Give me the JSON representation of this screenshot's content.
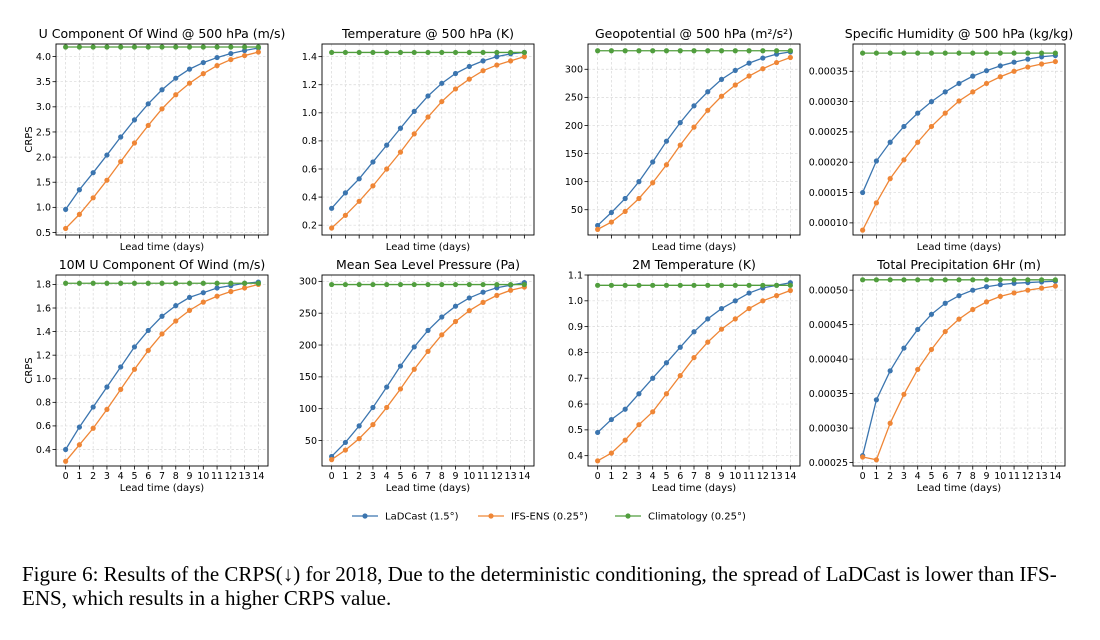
{
  "legend": {
    "entries": [
      {
        "label": "LaDCast (1.5°)",
        "color": "#3b75af"
      },
      {
        "label": "IFS-ENS (0.25°)",
        "color": "#ef8636"
      },
      {
        "label": "Climatology (0.25°)",
        "color": "#519e3e"
      }
    ]
  },
  "caption": "Figure 6: Results of the CRPS(↓) for 2018, Due to the deterministic conditioning, the spread of LaDCast is lower than IFS-ENS, which results in a higher CRPS value.",
  "chart_data": [
    {
      "type": "line",
      "title": "U Component Of Wind @ 500 hPa (m/s)",
      "xlabel": "Lead time (days)",
      "ylabel": "CRPS",
      "ylim": [
        0.45,
        4.25
      ],
      "yticks": [
        "0.5",
        "1.0",
        "1.5",
        "2.0",
        "2.5",
        "3.0",
        "3.5",
        "4.0"
      ],
      "ytick_values": [
        0.5,
        1.0,
        1.5,
        2.0,
        2.5,
        3.0,
        3.5,
        4.0
      ],
      "x": [
        0,
        1,
        2,
        3,
        4,
        5,
        6,
        7,
        8,
        9,
        10,
        11,
        12,
        13,
        14
      ],
      "show_xticklabels": false,
      "series": [
        {
          "name": "LaDCast (1.5°)",
          "values": [
            0.96,
            1.35,
            1.69,
            2.04,
            2.4,
            2.74,
            3.06,
            3.34,
            3.57,
            3.75,
            3.88,
            3.98,
            4.06,
            4.12,
            4.17
          ]
        },
        {
          "name": "IFS-ENS (0.25°)",
          "values": [
            0.58,
            0.86,
            1.19,
            1.54,
            1.91,
            2.28,
            2.63,
            2.96,
            3.24,
            3.47,
            3.66,
            3.82,
            3.94,
            4.02,
            4.09
          ]
        },
        {
          "name": "Climatology (0.25°)",
          "values": [
            4.19,
            4.19,
            4.19,
            4.19,
            4.19,
            4.19,
            4.19,
            4.19,
            4.19,
            4.19,
            4.19,
            4.19,
            4.19,
            4.19,
            4.19
          ]
        }
      ]
    },
    {
      "type": "line",
      "title": "Temperature @ 500 hPa (K)",
      "xlabel": "Lead time (days)",
      "ylabel": "",
      "ylim": [
        0.13,
        1.49
      ],
      "yticks": [
        "0.2",
        "0.4",
        "0.6",
        "0.8",
        "1.0",
        "1.2",
        "1.4"
      ],
      "ytick_values": [
        0.2,
        0.4,
        0.6,
        0.8,
        1.0,
        1.2,
        1.4
      ],
      "x": [
        0,
        1,
        2,
        3,
        4,
        5,
        6,
        7,
        8,
        9,
        10,
        11,
        12,
        13,
        14
      ],
      "show_xticklabels": false,
      "series": [
        {
          "name": "LaDCast (1.5°)",
          "values": [
            0.32,
            0.43,
            0.53,
            0.65,
            0.77,
            0.89,
            1.01,
            1.12,
            1.21,
            1.28,
            1.33,
            1.37,
            1.4,
            1.42,
            1.43
          ]
        },
        {
          "name": "IFS-ENS (0.25°)",
          "values": [
            0.18,
            0.27,
            0.37,
            0.48,
            0.6,
            0.72,
            0.85,
            0.97,
            1.08,
            1.17,
            1.24,
            1.3,
            1.34,
            1.37,
            1.4
          ]
        },
        {
          "name": "Climatology (0.25°)",
          "values": [
            1.43,
            1.43,
            1.43,
            1.43,
            1.43,
            1.43,
            1.43,
            1.43,
            1.43,
            1.43,
            1.43,
            1.43,
            1.43,
            1.43,
            1.43
          ]
        }
      ]
    },
    {
      "type": "line",
      "title": "Geopotential @ 500 hPa (m²/s²)",
      "xlabel": "Lead time (days)",
      "ylabel": "",
      "ylim": [
        5,
        345
      ],
      "yticks": [
        "50",
        "100",
        "150",
        "200",
        "250",
        "300"
      ],
      "ytick_values": [
        50,
        100,
        150,
        200,
        250,
        300
      ],
      "x": [
        0,
        1,
        2,
        3,
        4,
        5,
        6,
        7,
        8,
        9,
        10,
        11,
        12,
        13,
        14
      ],
      "show_xticklabels": false,
      "series": [
        {
          "name": "LaDCast (1.5°)",
          "values": [
            22,
            45,
            70,
            100,
            135,
            172,
            205,
            235,
            260,
            282,
            298,
            311,
            320,
            327,
            331
          ]
        },
        {
          "name": "IFS-ENS (0.25°)",
          "values": [
            15,
            28,
            47,
            70,
            98,
            130,
            165,
            197,
            227,
            252,
            272,
            288,
            301,
            312,
            321
          ]
        },
        {
          "name": "Climatology (0.25°)",
          "values": [
            333,
            333,
            333,
            333,
            333,
            333,
            333,
            333,
            333,
            333,
            333,
            333,
            333,
            333,
            333
          ]
        }
      ]
    },
    {
      "type": "line",
      "title": "Specific Humidity @ 500 hPa (kg/kg)",
      "xlabel": "Lead time (days)",
      "ylabel": "",
      "ylim": [
        8e-05,
        0.000395
      ],
      "yticks": [
        "0.00010",
        "0.00015",
        "0.00020",
        "0.00025",
        "0.00030",
        "0.00035"
      ],
      "ytick_values": [
        0.0001,
        0.00015,
        0.0002,
        0.00025,
        0.0003,
        0.00035
      ],
      "x": [
        0,
        1,
        2,
        3,
        4,
        5,
        6,
        7,
        8,
        9,
        10,
        11,
        12,
        13,
        14
      ],
      "show_xticklabels": false,
      "series": [
        {
          "name": "LaDCast (1.5°)",
          "values": [
            0.00015,
            0.000202,
            0.000233,
            0.000259,
            0.000281,
            0.0003,
            0.000316,
            0.00033,
            0.000342,
            0.000351,
            0.000359,
            0.000365,
            0.00037,
            0.000374,
            0.000376
          ]
        },
        {
          "name": "IFS-ENS (0.25°)",
          "values": [
            8.8e-05,
            0.000133,
            0.000173,
            0.000204,
            0.000233,
            0.000259,
            0.000281,
            0.000301,
            0.000316,
            0.00033,
            0.000341,
            0.00035,
            0.000357,
            0.000362,
            0.000366
          ]
        },
        {
          "name": "Climatology (0.25°)",
          "values": [
            0.00038,
            0.00038,
            0.00038,
            0.00038,
            0.00038,
            0.00038,
            0.00038,
            0.00038,
            0.00038,
            0.00038,
            0.00038,
            0.00038,
            0.00038,
            0.00038,
            0.00038
          ]
        }
      ]
    },
    {
      "type": "line",
      "title": "10M U Component Of Wind (m/s)",
      "xlabel": "Lead time (days)",
      "ylabel": "CRPS",
      "ylim": [
        0.26,
        1.88
      ],
      "yticks": [
        "0.4",
        "0.6",
        "0.8",
        "1.0",
        "1.2",
        "1.4",
        "1.6",
        "1.8"
      ],
      "ytick_values": [
        0.4,
        0.6,
        0.8,
        1.0,
        1.2,
        1.4,
        1.6,
        1.8
      ],
      "x": [
        0,
        1,
        2,
        3,
        4,
        5,
        6,
        7,
        8,
        9,
        10,
        11,
        12,
        13,
        14
      ],
      "xticks": [
        "0",
        "1",
        "2",
        "3",
        "4",
        "5",
        "6",
        "7",
        "8",
        "9",
        "10",
        "11",
        "12",
        "13",
        "14"
      ],
      "show_xticklabels": true,
      "series": [
        {
          "name": "LaDCast (1.5°)",
          "values": [
            0.4,
            0.59,
            0.76,
            0.93,
            1.1,
            1.27,
            1.41,
            1.53,
            1.62,
            1.69,
            1.73,
            1.77,
            1.79,
            1.81,
            1.82
          ]
        },
        {
          "name": "IFS-ENS (0.25°)",
          "values": [
            0.3,
            0.44,
            0.58,
            0.74,
            0.91,
            1.08,
            1.24,
            1.38,
            1.49,
            1.58,
            1.65,
            1.7,
            1.74,
            1.77,
            1.8
          ]
        },
        {
          "name": "Climatology (0.25°)",
          "values": [
            1.81,
            1.81,
            1.81,
            1.81,
            1.81,
            1.81,
            1.81,
            1.81,
            1.81,
            1.81,
            1.81,
            1.81,
            1.81,
            1.81,
            1.81
          ]
        }
      ]
    },
    {
      "type": "line",
      "title": "Mean Sea Level Pressure (Pa)",
      "xlabel": "Lead time (days)",
      "ylabel": "",
      "ylim": [
        10,
        310
      ],
      "yticks": [
        "50",
        "100",
        "150",
        "200",
        "250",
        "300"
      ],
      "ytick_values": [
        50,
        100,
        150,
        200,
        250,
        300
      ],
      "x": [
        0,
        1,
        2,
        3,
        4,
        5,
        6,
        7,
        8,
        9,
        10,
        11,
        12,
        13,
        14
      ],
      "xticks": [
        "0",
        "1",
        "2",
        "3",
        "4",
        "5",
        "6",
        "7",
        "8",
        "9",
        "10",
        "11",
        "12",
        "13",
        "14"
      ],
      "show_xticklabels": true,
      "series": [
        {
          "name": "LaDCast (1.5°)",
          "values": [
            25,
            47,
            73,
            102,
            134,
            167,
            197,
            223,
            244,
            261,
            274,
            283,
            290,
            294,
            298
          ]
        },
        {
          "name": "IFS-ENS (0.25°)",
          "values": [
            20,
            35,
            53,
            75,
            102,
            131,
            162,
            190,
            216,
            237,
            254,
            267,
            278,
            286,
            291
          ]
        },
        {
          "name": "Climatology (0.25°)",
          "values": [
            295,
            295,
            295,
            295,
            295,
            295,
            295,
            295,
            295,
            295,
            295,
            295,
            295,
            295,
            295
          ]
        }
      ]
    },
    {
      "type": "line",
      "title": "2M Temperature (K)",
      "xlabel": "Lead time (days)",
      "ylabel": "",
      "ylim": [
        0.36,
        1.1
      ],
      "yticks": [
        "0.4",
        "0.5",
        "0.6",
        "0.7",
        "0.8",
        "0.9",
        "1.0",
        "1.1"
      ],
      "ytick_values": [
        0.4,
        0.5,
        0.6,
        0.7,
        0.8,
        0.9,
        1.0,
        1.1
      ],
      "x": [
        0,
        1,
        2,
        3,
        4,
        5,
        6,
        7,
        8,
        9,
        10,
        11,
        12,
        13,
        14
      ],
      "xticks": [
        "0",
        "1",
        "2",
        "3",
        "4",
        "5",
        "6",
        "7",
        "8",
        "9",
        "10",
        "11",
        "12",
        "13",
        "14"
      ],
      "show_xticklabels": true,
      "series": [
        {
          "name": "LaDCast (1.5°)",
          "values": [
            0.49,
            0.54,
            0.58,
            0.64,
            0.7,
            0.76,
            0.82,
            0.88,
            0.93,
            0.97,
            1.0,
            1.03,
            1.05,
            1.06,
            1.07
          ]
        },
        {
          "name": "IFS-ENS (0.25°)",
          "values": [
            0.38,
            0.41,
            0.46,
            0.52,
            0.57,
            0.64,
            0.71,
            0.78,
            0.84,
            0.89,
            0.93,
            0.97,
            1.0,
            1.02,
            1.04
          ]
        },
        {
          "name": "Climatology (0.25°)",
          "values": [
            1.06,
            1.06,
            1.06,
            1.06,
            1.06,
            1.06,
            1.06,
            1.06,
            1.06,
            1.06,
            1.06,
            1.06,
            1.06,
            1.06,
            1.06
          ]
        }
      ]
    },
    {
      "type": "line",
      "title": "Total Precipitation 6Hr (m)",
      "xlabel": "Lead time (days)",
      "ylabel": "",
      "ylim": [
        0.000245,
        0.000522
      ],
      "yticks": [
        "0.00025",
        "0.00030",
        "0.00035",
        "0.00040",
        "0.00045",
        "0.00050"
      ],
      "ytick_values": [
        0.00025,
        0.0003,
        0.00035,
        0.0004,
        0.00045,
        0.0005
      ],
      "x": [
        0,
        1,
        2,
        3,
        4,
        5,
        6,
        7,
        8,
        9,
        10,
        11,
        12,
        13,
        14
      ],
      "xticks": [
        "0",
        "1",
        "2",
        "3",
        "4",
        "5",
        "6",
        "7",
        "8",
        "9",
        "10",
        "11",
        "12",
        "13",
        "14"
      ],
      "show_xticklabels": true,
      "series": [
        {
          "name": "LaDCast (1.5°)",
          "values": [
            0.00026,
            0.000341,
            0.000383,
            0.000416,
            0.000443,
            0.000465,
            0.000481,
            0.000492,
            0.0005,
            0.000505,
            0.000508,
            0.00051,
            0.000511,
            0.000512,
            0.000513
          ]
        },
        {
          "name": "IFS-ENS (0.25°)",
          "values": [
            0.000258,
            0.000254,
            0.000307,
            0.000349,
            0.000385,
            0.000414,
            0.00044,
            0.000458,
            0.000472,
            0.000483,
            0.000491,
            0.000496,
            0.0005,
            0.000503,
            0.000506
          ]
        },
        {
          "name": "Climatology (0.25°)",
          "values": [
            0.000515,
            0.000515,
            0.000515,
            0.000515,
            0.000515,
            0.000515,
            0.000515,
            0.000515,
            0.000515,
            0.000515,
            0.000515,
            0.000515,
            0.000515,
            0.000515,
            0.000515
          ]
        }
      ]
    }
  ]
}
